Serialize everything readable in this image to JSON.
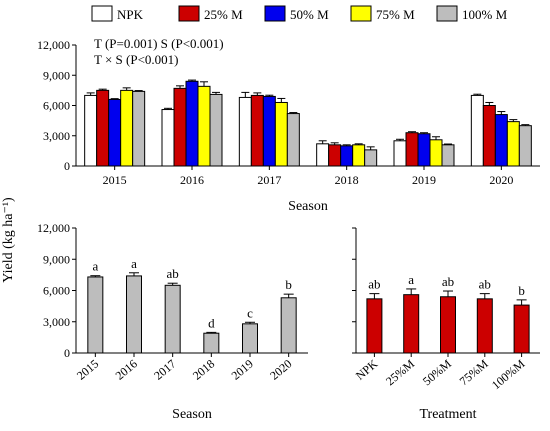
{
  "legend": {
    "items": [
      {
        "label": "NPK",
        "color": "#ffffff"
      },
      {
        "label": "25% M",
        "color": "#cc0000"
      },
      {
        "label": "50% M",
        "color": "#0000ee"
      },
      {
        "label": "75% M",
        "color": "#ffff00"
      },
      {
        "label": "100% M",
        "color": "#bdbdbd"
      }
    ]
  },
  "shared_ylabel": "Yield (kg ha⁻¹)",
  "chart_data": [
    {
      "type": "bar",
      "panel": "top",
      "xlabel": "Season",
      "ylim": [
        0,
        12000
      ],
      "yticks": [
        "0",
        "3,000",
        "6,000",
        "9,000",
        "12,000"
      ],
      "categories": [
        "2015",
        "2016",
        "2017",
        "2018",
        "2019",
        "2020"
      ],
      "annotations": [
        "T (P=0.001)   S (P<0.001)",
        "T × S (P<0.001)"
      ],
      "series": [
        {
          "name": "NPK",
          "color": "#ffffff",
          "values": [
            7000,
            5600,
            6800,
            2200,
            2500,
            7000
          ],
          "errors": [
            250,
            120,
            500,
            300,
            150,
            120
          ]
        },
        {
          "name": "25% M",
          "color": "#cc0000",
          "values": [
            7500,
            7700,
            7000,
            2100,
            3300,
            6000
          ],
          "errors": [
            120,
            250,
            250,
            200,
            100,
            300
          ]
        },
        {
          "name": "50% M",
          "color": "#0000ee",
          "values": [
            6600,
            8400,
            6900,
            2000,
            3200,
            5100
          ],
          "errors": [
            80,
            120,
            120,
            100,
            100,
            300
          ]
        },
        {
          "name": "75% M",
          "color": "#ffff00",
          "values": [
            7500,
            7900,
            6300,
            2100,
            2600,
            4400
          ],
          "errors": [
            250,
            450,
            400,
            100,
            300,
            200
          ]
        },
        {
          "name": "100% M",
          "color": "#bdbdbd",
          "values": [
            7400,
            7100,
            5200,
            1600,
            2100,
            4000
          ],
          "errors": [
            80,
            200,
            100,
            300,
            80,
            100
          ]
        }
      ]
    },
    {
      "type": "bar",
      "panel": "bottom-left",
      "xlabel": "Season",
      "ylim": [
        0,
        12000
      ],
      "yticks": [
        "0",
        "3,000",
        "6,000",
        "9,000",
        "12,000"
      ],
      "categories": [
        "2015",
        "2016",
        "2017",
        "2018",
        "2019",
        "2020"
      ],
      "values": [
        7300,
        7400,
        6500,
        1900,
        2800,
        5300
      ],
      "errors": [
        120,
        300,
        200,
        80,
        150,
        350
      ],
      "letters": [
        "a",
        "a",
        "ab",
        "d",
        "c",
        "b"
      ],
      "color": "#bdbdbd"
    },
    {
      "type": "bar",
      "panel": "bottom-right",
      "xlabel": "Treatment",
      "ylim": [
        0,
        12000
      ],
      "categories": [
        "NPK",
        "25%M",
        "50%M",
        "75%M",
        "100%M"
      ],
      "values": [
        5200,
        5600,
        5400,
        5200,
        4600
      ],
      "errors": [
        500,
        550,
        550,
        500,
        500
      ],
      "letters": [
        "ab",
        "a",
        "ab",
        "ab",
        "b"
      ],
      "color": "#cc0000"
    }
  ]
}
